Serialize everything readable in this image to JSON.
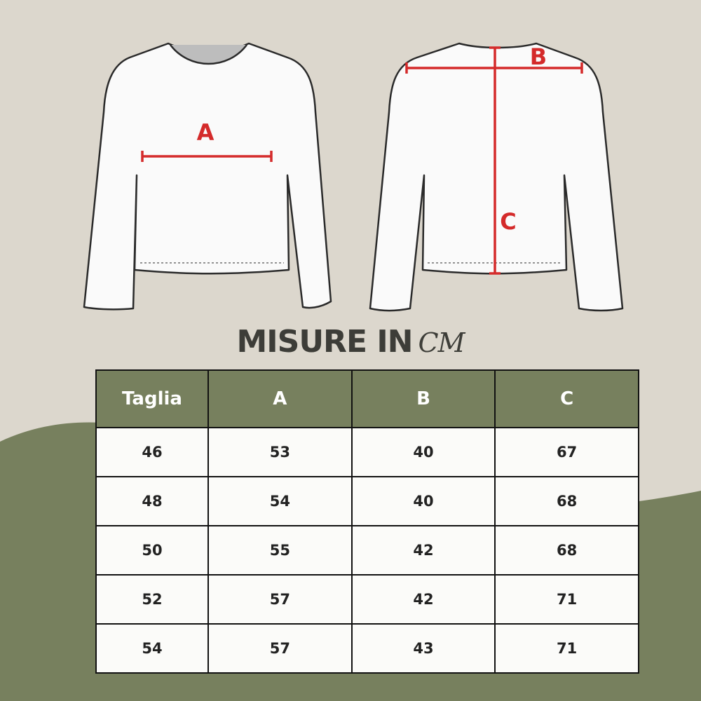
{
  "colors": {
    "background": "#dcd7cd",
    "accent_green": "#77805e",
    "measure_red": "#d42a2a"
  },
  "diagram": {
    "front_label": "A",
    "back_width_label": "B",
    "back_length_label": "C"
  },
  "title": {
    "main": "MISURE IN",
    "unit": "CM"
  },
  "table": {
    "headers": [
      "Taglia",
      "A",
      "B",
      "C"
    ],
    "rows": [
      [
        "46",
        "53",
        "40",
        "67"
      ],
      [
        "48",
        "54",
        "40",
        "68"
      ],
      [
        "50",
        "55",
        "42",
        "68"
      ],
      [
        "52",
        "57",
        "42",
        "71"
      ],
      [
        "54",
        "57",
        "43",
        "71"
      ]
    ]
  }
}
